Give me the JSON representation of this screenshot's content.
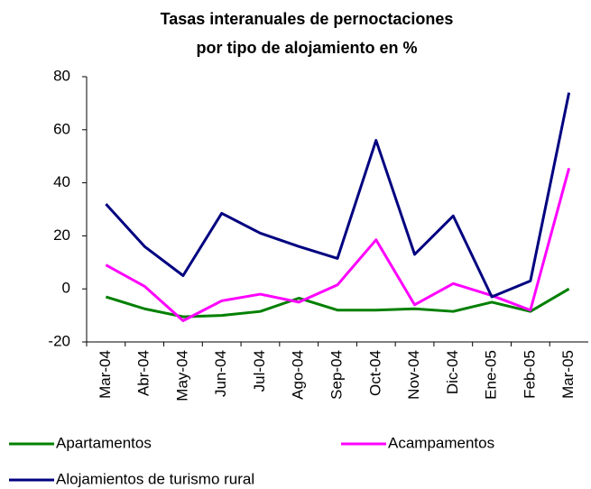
{
  "chart_data": {
    "type": "line",
    "title": [
      "Tasas interanuales de pernoctaciones",
      "por tipo de alojamiento en %"
    ],
    "categories": [
      "Mar-04",
      "Abr-04",
      "May-04",
      "Jun-04",
      "Jul-04",
      "Ago-04",
      "Sep-04",
      "Oct-04",
      "Nov-04",
      "Dic-04",
      "Ene-05",
      "Feb-05",
      "Mar-05"
    ],
    "series": [
      {
        "name": "Apartamentos",
        "color": "#008000",
        "values": [
          -3,
          -7.5,
          -10.5,
          -10,
          -8.5,
          -3.5,
          -8,
          -8,
          -7.5,
          -8.5,
          -5,
          -8.5,
          0
        ]
      },
      {
        "name": "Acampamentos",
        "color": "#ff00ff",
        "values": [
          9,
          1,
          -12,
          -4.5,
          -2,
          -5,
          1.5,
          18.5,
          -6,
          2,
          -2.5,
          -8,
          45.5
        ]
      },
      {
        "name": "Alojamientos de turismo rural",
        "color": "#000080",
        "values": [
          32,
          16,
          5,
          28.5,
          21,
          16,
          11.5,
          56,
          13,
          27.5,
          -3,
          3,
          74
        ]
      }
    ],
    "ylim": [
      -20,
      80
    ],
    "yticks": [
      -20,
      0,
      20,
      40,
      60,
      80
    ],
    "grid": false
  }
}
